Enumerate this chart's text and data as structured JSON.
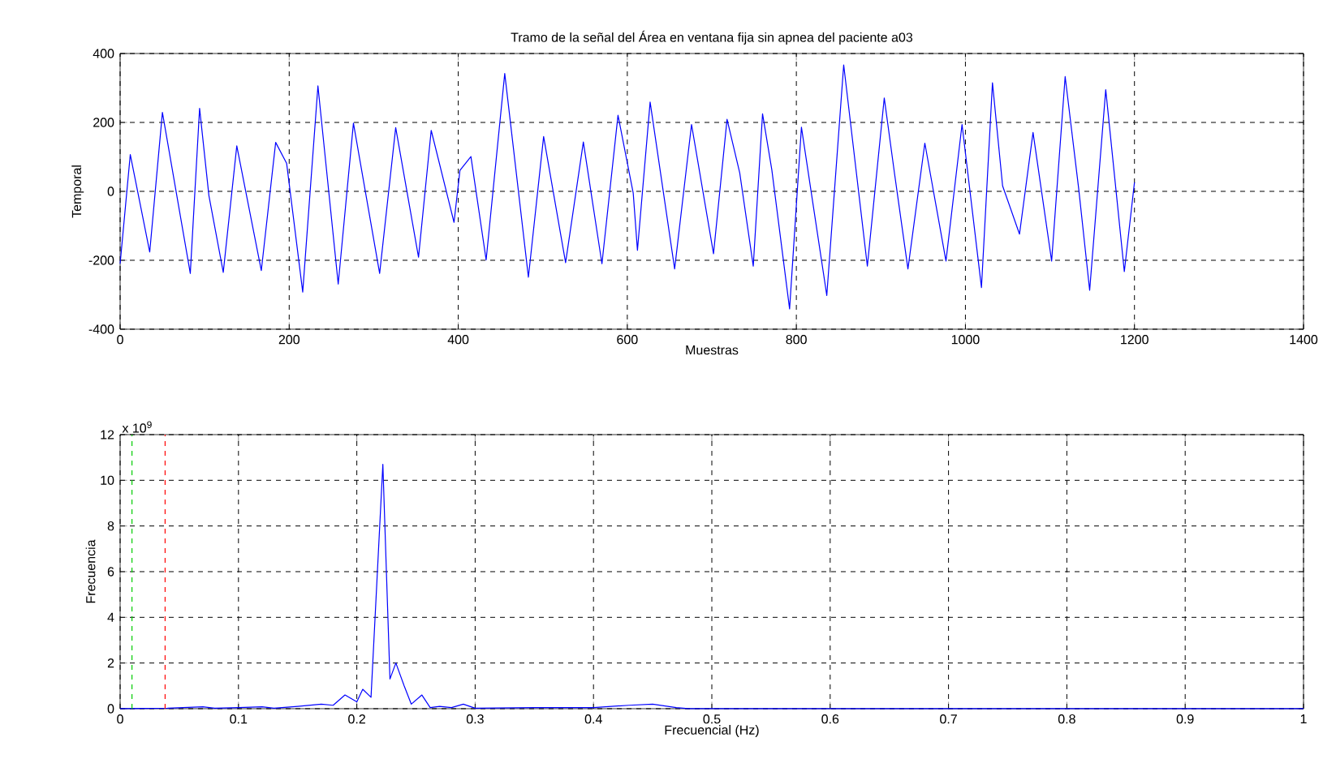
{
  "chart_data": [
    {
      "type": "line",
      "title": "Tramo de la señal del Área en ventana fija sin apnea del paciente a03",
      "xlabel": "Muestras",
      "ylabel": "Temporal",
      "color": "#0000ff",
      "line_style": "solid",
      "grid": true,
      "xlim": [
        0,
        1400
      ],
      "xticks": [
        0,
        200,
        400,
        600,
        800,
        1000,
        1200,
        1400
      ],
      "ylim": [
        -400,
        400
      ],
      "yticks": [
        -400,
        -200,
        0,
        200,
        400
      ],
      "x": [
        0,
        12,
        35,
        50,
        83,
        94,
        105,
        122,
        138,
        167,
        184,
        197,
        216,
        234,
        258,
        276,
        307,
        326,
        353,
        368,
        395,
        402,
        415,
        433,
        455,
        483,
        501,
        527,
        548,
        570,
        589,
        607,
        612,
        627,
        656,
        676,
        702,
        718,
        733,
        749,
        760,
        771,
        792,
        806,
        836,
        856,
        884,
        904,
        916,
        932,
        952,
        977,
        996,
        1019,
        1032,
        1044,
        1064,
        1080,
        1102,
        1118,
        1134,
        1147,
        1166,
        1188,
        1200
      ],
      "values": [
        -210,
        107,
        -176,
        229,
        -238,
        241,
        -12,
        -235,
        132,
        -230,
        142,
        81,
        -292,
        306,
        -269,
        198,
        -238,
        185,
        -191,
        177,
        -90,
        61,
        101,
        -199,
        342,
        -249,
        159,
        -207,
        143,
        -210,
        221,
        -5,
        -171,
        259,
        -225,
        194,
        -181,
        209,
        54,
        -217,
        225,
        62,
        -341,
        186,
        -302,
        367,
        -217,
        271,
        54,
        -225,
        140,
        -202,
        194,
        -279,
        315,
        16,
        -124,
        171,
        -202,
        333,
        8,
        -287,
        295,
        -233,
        26
      ]
    },
    {
      "type": "line",
      "xlabel": "Frecuencial (Hz)",
      "ylabel": "Frecuencia",
      "color": "#0000ff",
      "line_style": "solid",
      "grid": true,
      "xlim": [
        0,
        1
      ],
      "xticks": [
        0,
        0.1,
        0.2,
        0.3,
        0.4,
        0.5,
        0.6,
        0.7,
        0.8,
        0.9,
        1
      ],
      "ylim": [
        0,
        12
      ],
      "yticks": [
        0,
        2,
        4,
        6,
        8,
        10,
        12
      ],
      "annotations": [
        "x 10$^{9}$"
      ],
      "ref_lines": [
        {
          "axis": "x",
          "value": 0.01,
          "color": "#00cc00",
          "line_style": "dashed"
        },
        {
          "axis": "x",
          "value": 0.038,
          "color": "#ff0000",
          "line_style": "dashed"
        }
      ],
      "x": [
        0,
        0.04,
        0.07,
        0.08,
        0.1,
        0.12,
        0.13,
        0.15,
        0.17,
        0.18,
        0.19,
        0.2,
        0.205,
        0.212,
        0.222,
        0.228,
        0.233,
        0.24,
        0.246,
        0.255,
        0.262,
        0.27,
        0.28,
        0.29,
        0.3,
        0.35,
        0.4,
        0.43,
        0.45,
        0.47,
        0.48,
        1
      ],
      "values": [
        0,
        0.02,
        0.08,
        0.02,
        0.05,
        0.08,
        0.02,
        0.1,
        0.2,
        0.15,
        0.6,
        0.3,
        0.85,
        0.5,
        10.7,
        1.3,
        2.0,
        1.0,
        0.2,
        0.6,
        0.05,
        0.1,
        0.05,
        0.2,
        0.02,
        0.05,
        0.05,
        0.15,
        0.2,
        0.05,
        0,
        0
      ]
    }
  ]
}
